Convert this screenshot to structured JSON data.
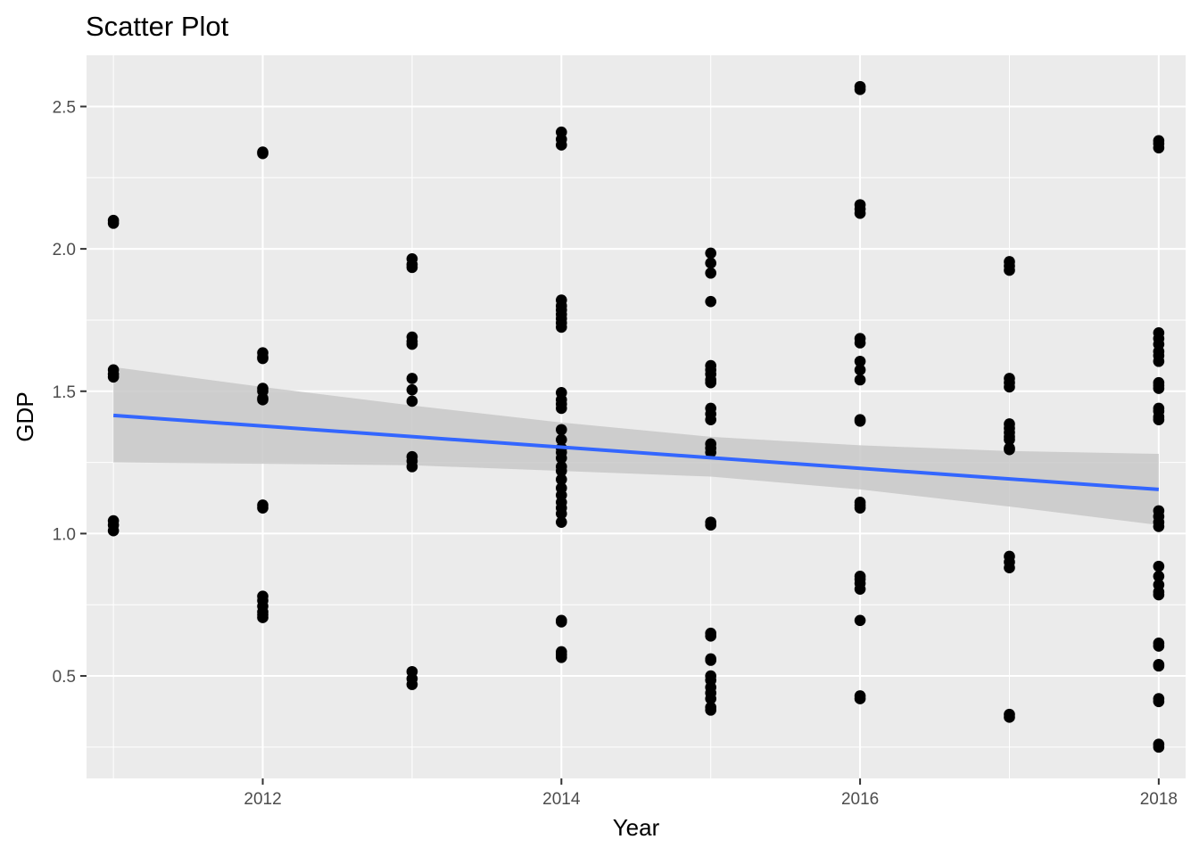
{
  "chart_data": {
    "type": "scatter",
    "title": "Scatter Plot",
    "xlabel": "Year",
    "ylabel": "GDP",
    "xlim": [
      2010.82,
      2018.18
    ],
    "ylim": [
      0.14,
      2.68
    ],
    "x_ticks": [
      2012,
      2014,
      2016,
      2018
    ],
    "x_tick_labels": [
      "2012",
      "2014",
      "2016",
      "2018"
    ],
    "y_ticks": [
      0.5,
      1.0,
      1.5,
      2.0,
      2.5
    ],
    "y_tick_labels": [
      "0.5",
      "1.0",
      "1.5",
      "2.0",
      "2.5"
    ],
    "y_minor_ticks": [
      0.25,
      0.75,
      1.25,
      1.75,
      2.25
    ],
    "x_minor_ticks": [
      2011,
      2013,
      2015,
      2017
    ],
    "grid": true,
    "colors": {
      "panel": "#ebebeb",
      "grid": "#ffffff",
      "points": "#000000",
      "trend_line": "#3366ff",
      "confidence_band": "#c8c8c8"
    },
    "points": [
      {
        "x": 2011,
        "y": 2.1
      },
      {
        "x": 2011,
        "y": 2.09
      },
      {
        "x": 2011,
        "y": 1.575
      },
      {
        "x": 2011,
        "y": 1.56
      },
      {
        "x": 2011,
        "y": 1.55
      },
      {
        "x": 2011,
        "y": 1.045
      },
      {
        "x": 2011,
        "y": 1.03
      },
      {
        "x": 2011,
        "y": 1.01
      },
      {
        "x": 2012,
        "y": 2.34
      },
      {
        "x": 2012,
        "y": 2.335
      },
      {
        "x": 2012,
        "y": 1.635
      },
      {
        "x": 2012,
        "y": 1.62
      },
      {
        "x": 2012,
        "y": 1.615
      },
      {
        "x": 2012,
        "y": 1.51
      },
      {
        "x": 2012,
        "y": 1.5
      },
      {
        "x": 2012,
        "y": 1.475
      },
      {
        "x": 2012,
        "y": 1.47
      },
      {
        "x": 2012,
        "y": 1.1
      },
      {
        "x": 2012,
        "y": 1.09
      },
      {
        "x": 2012,
        "y": 0.78
      },
      {
        "x": 2012,
        "y": 0.765
      },
      {
        "x": 2012,
        "y": 0.745
      },
      {
        "x": 2012,
        "y": 0.725
      },
      {
        "x": 2012,
        "y": 0.715
      },
      {
        "x": 2012,
        "y": 0.705
      },
      {
        "x": 2013,
        "y": 1.965
      },
      {
        "x": 2013,
        "y": 1.945
      },
      {
        "x": 2013,
        "y": 1.935
      },
      {
        "x": 2013,
        "y": 1.69
      },
      {
        "x": 2013,
        "y": 1.675
      },
      {
        "x": 2013,
        "y": 1.665
      },
      {
        "x": 2013,
        "y": 1.545
      },
      {
        "x": 2013,
        "y": 1.505
      },
      {
        "x": 2013,
        "y": 1.465
      },
      {
        "x": 2013,
        "y": 1.27
      },
      {
        "x": 2013,
        "y": 1.255
      },
      {
        "x": 2013,
        "y": 1.235
      },
      {
        "x": 2013,
        "y": 0.515
      },
      {
        "x": 2013,
        "y": 0.49
      },
      {
        "x": 2013,
        "y": 0.47
      },
      {
        "x": 2014,
        "y": 2.41
      },
      {
        "x": 2014,
        "y": 2.385
      },
      {
        "x": 2014,
        "y": 2.365
      },
      {
        "x": 2014,
        "y": 1.82
      },
      {
        "x": 2014,
        "y": 1.8
      },
      {
        "x": 2014,
        "y": 1.785
      },
      {
        "x": 2014,
        "y": 1.77
      },
      {
        "x": 2014,
        "y": 1.755
      },
      {
        "x": 2014,
        "y": 1.74
      },
      {
        "x": 2014,
        "y": 1.725
      },
      {
        "x": 2014,
        "y": 1.495
      },
      {
        "x": 2014,
        "y": 1.47
      },
      {
        "x": 2014,
        "y": 1.455
      },
      {
        "x": 2014,
        "y": 1.44
      },
      {
        "x": 2014,
        "y": 1.365
      },
      {
        "x": 2014,
        "y": 1.33
      },
      {
        "x": 2014,
        "y": 1.3
      },
      {
        "x": 2014,
        "y": 1.285
      },
      {
        "x": 2014,
        "y": 1.265
      },
      {
        "x": 2014,
        "y": 1.235
      },
      {
        "x": 2014,
        "y": 1.22
      },
      {
        "x": 2014,
        "y": 1.19
      },
      {
        "x": 2014,
        "y": 1.16
      },
      {
        "x": 2014,
        "y": 1.135
      },
      {
        "x": 2014,
        "y": 1.11
      },
      {
        "x": 2014,
        "y": 1.09
      },
      {
        "x": 2014,
        "y": 1.07
      },
      {
        "x": 2014,
        "y": 1.04
      },
      {
        "x": 2014,
        "y": 0.695
      },
      {
        "x": 2014,
        "y": 0.69
      },
      {
        "x": 2014,
        "y": 0.585
      },
      {
        "x": 2014,
        "y": 0.575
      },
      {
        "x": 2014,
        "y": 0.565
      },
      {
        "x": 2015,
        "y": 1.985
      },
      {
        "x": 2015,
        "y": 1.95
      },
      {
        "x": 2015,
        "y": 1.915
      },
      {
        "x": 2015,
        "y": 1.815
      },
      {
        "x": 2015,
        "y": 1.59
      },
      {
        "x": 2015,
        "y": 1.575
      },
      {
        "x": 2015,
        "y": 1.56
      },
      {
        "x": 2015,
        "y": 1.54
      },
      {
        "x": 2015,
        "y": 1.53
      },
      {
        "x": 2015,
        "y": 1.44
      },
      {
        "x": 2015,
        "y": 1.42
      },
      {
        "x": 2015,
        "y": 1.4
      },
      {
        "x": 2015,
        "y": 1.315
      },
      {
        "x": 2015,
        "y": 1.3
      },
      {
        "x": 2015,
        "y": 1.285
      },
      {
        "x": 2015,
        "y": 1.04
      },
      {
        "x": 2015,
        "y": 1.03
      },
      {
        "x": 2015,
        "y": 0.65
      },
      {
        "x": 2015,
        "y": 0.64
      },
      {
        "x": 2015,
        "y": 0.56
      },
      {
        "x": 2015,
        "y": 0.555
      },
      {
        "x": 2015,
        "y": 0.5
      },
      {
        "x": 2015,
        "y": 0.485
      },
      {
        "x": 2015,
        "y": 0.46
      },
      {
        "x": 2015,
        "y": 0.44
      },
      {
        "x": 2015,
        "y": 0.42
      },
      {
        "x": 2015,
        "y": 0.39
      },
      {
        "x": 2015,
        "y": 0.38
      },
      {
        "x": 2016,
        "y": 2.57
      },
      {
        "x": 2016,
        "y": 2.56
      },
      {
        "x": 2016,
        "y": 2.155
      },
      {
        "x": 2016,
        "y": 2.14
      },
      {
        "x": 2016,
        "y": 2.125
      },
      {
        "x": 2016,
        "y": 1.685
      },
      {
        "x": 2016,
        "y": 1.67
      },
      {
        "x": 2016,
        "y": 1.605
      },
      {
        "x": 2016,
        "y": 1.575
      },
      {
        "x": 2016,
        "y": 1.54
      },
      {
        "x": 2016,
        "y": 1.4
      },
      {
        "x": 2016,
        "y": 1.395
      },
      {
        "x": 2016,
        "y": 1.11
      },
      {
        "x": 2016,
        "y": 1.1
      },
      {
        "x": 2016,
        "y": 1.09
      },
      {
        "x": 2016,
        "y": 0.85
      },
      {
        "x": 2016,
        "y": 0.84
      },
      {
        "x": 2016,
        "y": 0.825
      },
      {
        "x": 2016,
        "y": 0.805
      },
      {
        "x": 2016,
        "y": 0.695
      },
      {
        "x": 2016,
        "y": 0.43
      },
      {
        "x": 2016,
        "y": 0.42
      },
      {
        "x": 2017,
        "y": 1.955
      },
      {
        "x": 2017,
        "y": 1.94
      },
      {
        "x": 2017,
        "y": 1.925
      },
      {
        "x": 2017,
        "y": 1.545
      },
      {
        "x": 2017,
        "y": 1.53
      },
      {
        "x": 2017,
        "y": 1.515
      },
      {
        "x": 2017,
        "y": 1.385
      },
      {
        "x": 2017,
        "y": 1.37
      },
      {
        "x": 2017,
        "y": 1.355
      },
      {
        "x": 2017,
        "y": 1.34
      },
      {
        "x": 2017,
        "y": 1.33
      },
      {
        "x": 2017,
        "y": 1.3
      },
      {
        "x": 2017,
        "y": 1.295
      },
      {
        "x": 2017,
        "y": 0.92
      },
      {
        "x": 2017,
        "y": 0.9
      },
      {
        "x": 2017,
        "y": 0.88
      },
      {
        "x": 2017,
        "y": 0.365
      },
      {
        "x": 2017,
        "y": 0.355
      },
      {
        "x": 2018,
        "y": 2.38
      },
      {
        "x": 2018,
        "y": 2.37
      },
      {
        "x": 2018,
        "y": 2.355
      },
      {
        "x": 2018,
        "y": 1.705
      },
      {
        "x": 2018,
        "y": 1.685
      },
      {
        "x": 2018,
        "y": 1.665
      },
      {
        "x": 2018,
        "y": 1.64
      },
      {
        "x": 2018,
        "y": 1.625
      },
      {
        "x": 2018,
        "y": 1.605
      },
      {
        "x": 2018,
        "y": 1.53
      },
      {
        "x": 2018,
        "y": 1.52
      },
      {
        "x": 2018,
        "y": 1.51
      },
      {
        "x": 2018,
        "y": 1.44
      },
      {
        "x": 2018,
        "y": 1.43
      },
      {
        "x": 2018,
        "y": 1.41
      },
      {
        "x": 2018,
        "y": 1.4
      },
      {
        "x": 2018,
        "y": 1.08
      },
      {
        "x": 2018,
        "y": 1.06
      },
      {
        "x": 2018,
        "y": 1.04
      },
      {
        "x": 2018,
        "y": 1.025
      },
      {
        "x": 2018,
        "y": 0.885
      },
      {
        "x": 2018,
        "y": 0.85
      },
      {
        "x": 2018,
        "y": 0.82
      },
      {
        "x": 2018,
        "y": 0.795
      },
      {
        "x": 2018,
        "y": 0.785
      },
      {
        "x": 2018,
        "y": 0.615
      },
      {
        "x": 2018,
        "y": 0.605
      },
      {
        "x": 2018,
        "y": 0.54
      },
      {
        "x": 2018,
        "y": 0.535
      },
      {
        "x": 2018,
        "y": 0.42
      },
      {
        "x": 2018,
        "y": 0.41
      },
      {
        "x": 2018,
        "y": 0.26
      },
      {
        "x": 2018,
        "y": 0.25
      }
    ],
    "trend_line": {
      "x": [
        2011,
        2018
      ],
      "y": [
        1.415,
        1.155
      ]
    },
    "confidence_band": {
      "x": [
        2011,
        2012,
        2013,
        2014,
        2015,
        2016,
        2017,
        2018
      ],
      "upper": [
        1.585,
        1.515,
        1.45,
        1.39,
        1.34,
        1.31,
        1.29,
        1.28
      ],
      "lower": [
        1.25,
        1.245,
        1.24,
        1.22,
        1.2,
        1.155,
        1.095,
        1.03
      ]
    }
  }
}
